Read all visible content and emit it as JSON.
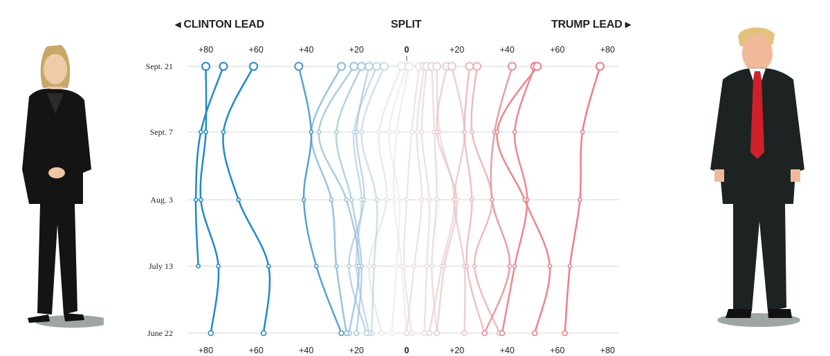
{
  "headers": {
    "left": "CLINTON LEAD",
    "center": "SPLIT",
    "right": "TRUMP LEAD"
  },
  "figures": {
    "left": "Hillary Clinton illustration",
    "right": "Donald Trump illustration"
  },
  "chart_data": {
    "type": "line",
    "orientation": "horizontal-values-vertical-dates",
    "dates": [
      "Sept. 21",
      "Sept. 7",
      "Aug. 3",
      "July 13",
      "June 22"
    ],
    "x_ticks": [
      -80,
      -60,
      -40,
      -20,
      0,
      20,
      40,
      60,
      80
    ],
    "x_tick_labels": [
      "+80",
      "+60",
      "+40",
      "+20",
      "0",
      "+20",
      "+40",
      "+60",
      "+80"
    ],
    "xlim": [
      -88,
      85
    ],
    "value_meaning": "negative = Clinton lead, positive = Trump lead (points)",
    "grid": true,
    "colors": {
      "clinton": "#1f88c8",
      "split": "#e4e4e4",
      "trump": "#ec7d85"
    },
    "series": [
      {
        "values": [
          -80,
          -80,
          -82,
          -75,
          -78
        ]
      },
      {
        "values": [
          -73,
          -82,
          -84,
          -83,
          null
        ]
      },
      {
        "values": [
          -61,
          -73,
          -67,
          -55,
          -57
        ]
      },
      {
        "values": [
          -43,
          -38,
          -41,
          -36,
          -26
        ]
      },
      {
        "values": [
          -26,
          -38,
          -30,
          -28,
          -24
        ]
      },
      {
        "values": [
          -21,
          -35,
          -24,
          -19,
          -23
        ]
      },
      {
        "values": [
          -18,
          -28,
          -22,
          -18,
          -20
        ]
      },
      {
        "values": [
          -15,
          -20,
          -17,
          -23,
          -16
        ]
      },
      {
        "values": [
          -12,
          -21,
          -18,
          -20,
          -15
        ]
      },
      {
        "values": [
          -9,
          -18,
          -12,
          -13,
          -14
        ]
      },
      {
        "values": [
          -2,
          -11,
          -8,
          -15,
          -10
        ]
      },
      {
        "values": [
          0,
          -7,
          -3,
          -4,
          -6
        ]
      },
      {
        "values": [
          1,
          -4,
          -5,
          -2,
          0
        ]
      },
      {
        "values": [
          5,
          2,
          0,
          -1,
          2
        ]
      },
      {
        "values": [
          7,
          4,
          6,
          3,
          0
        ]
      },
      {
        "values": [
          8,
          6,
          9,
          8,
          7
        ]
      },
      {
        "values": [
          10,
          11,
          12,
          10,
          12
        ]
      },
      {
        "values": [
          12,
          13,
          19,
          14,
          9
        ]
      },
      {
        "values": [
          16,
          12,
          20,
          15,
          12
        ]
      },
      {
        "values": [
          18,
          23,
          19,
          23,
          23
        ]
      },
      {
        "values": [
          25,
          23,
          26,
          24,
          31
        ]
      },
      {
        "values": [
          28,
          26,
          34,
          27,
          37
        ]
      },
      {
        "values": [
          42,
          35,
          34,
          41,
          31
        ]
      },
      {
        "values": [
          51,
          43,
          48,
          43,
          38
        ]
      },
      {
        "values": [
          52,
          36,
          47,
          57,
          51
        ]
      },
      {
        "values": [
          77,
          70,
          69,
          65,
          63
        ]
      }
    ]
  }
}
